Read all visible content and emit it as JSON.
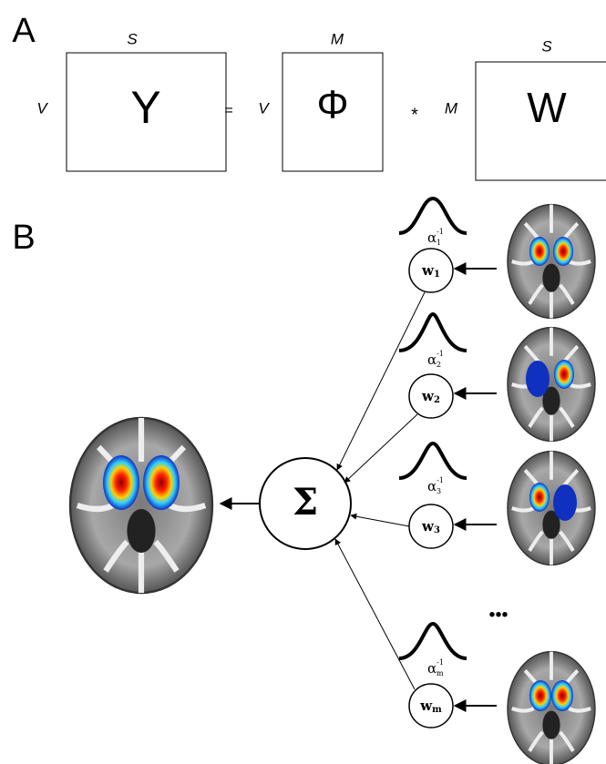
{
  "panel_a": {
    "label": "A",
    "matrices": [
      {
        "symbol": "Y",
        "rows": "V",
        "cols": "S"
      },
      {
        "symbol": "Φ",
        "rows": "V",
        "cols": "M"
      },
      {
        "symbol": "W",
        "rows": "M",
        "cols": "S"
      }
    ],
    "operators": [
      "=",
      "*"
    ]
  },
  "panel_b": {
    "label": "B",
    "sum": "Σ",
    "ellipsis": "•••",
    "nodes": [
      {
        "weight": "w",
        "index": "1",
        "prior": "α",
        "prior_exp": "-1",
        "prior_sub": "1"
      },
      {
        "weight": "w",
        "index": "2",
        "prior": "α",
        "prior_exp": "-1",
        "prior_sub": "2"
      },
      {
        "weight": "w",
        "index": "3",
        "prior": "α",
        "prior_exp": "-1",
        "prior_sub": "3"
      },
      {
        "weight": "w",
        "index": "m",
        "prior": "α",
        "prior_exp": "-1",
        "prior_sub": "m"
      }
    ]
  }
}
